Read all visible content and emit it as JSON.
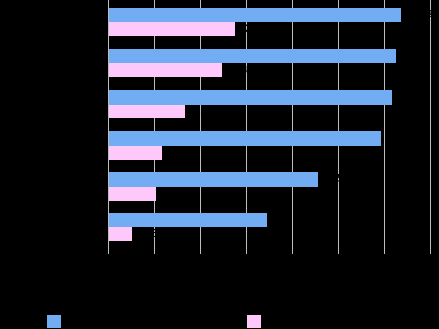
{
  "chart_data": {
    "type": "bar",
    "orientation": "horizontal",
    "title": "",
    "xlabel": "",
    "ylabel": "",
    "note": "All text labels (categories, tick labels, data labels, legend text) are rendered black on black background and are not legible in the screenshot.",
    "categories": [
      "",
      "",
      "",
      "",
      "",
      ""
    ],
    "series": [
      {
        "name": "",
        "color": "#72adf4",
        "values": [
          6.33,
          6.23,
          6.15,
          5.91,
          4.53,
          3.42
        ]
      },
      {
        "name": "",
        "color": "#ffc8fa",
        "values": [
          2.73,
          2.45,
          1.65,
          1.14,
          1.02,
          0.5
        ]
      }
    ],
    "xlim": [
      0,
      7
    ],
    "grid": true,
    "legend_position": "bottom"
  },
  "colors": {
    "background": "#000000",
    "gridline": "#bdbdbd",
    "series1": "#72adf4",
    "series2": "#ffc8fa"
  },
  "legend": [
    {
      "label": ""
    },
    {
      "label": ""
    }
  ]
}
